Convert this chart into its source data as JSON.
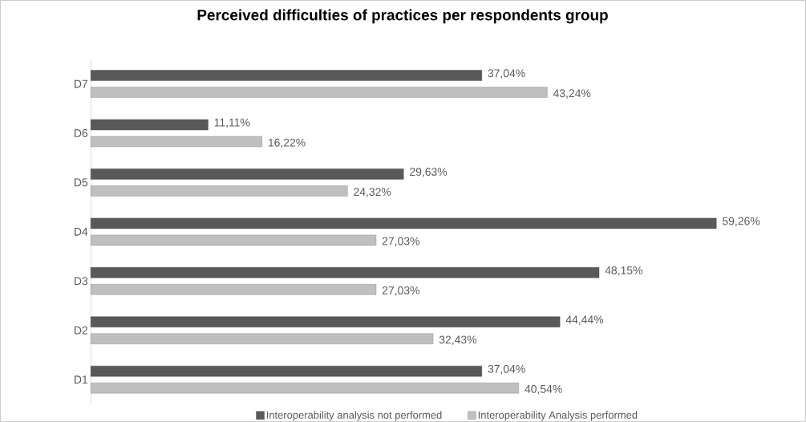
{
  "chart_data": {
    "type": "bar",
    "orientation": "horizontal",
    "title": "Perceived difficulties of practices per respondents group",
    "categories": [
      "D7",
      "D6",
      "D5",
      "D4",
      "D3",
      "D2",
      "D1"
    ],
    "series": [
      {
        "name": "Interoperability analysis not performed",
        "color": "#595959",
        "values": [
          37.04,
          11.11,
          29.63,
          59.26,
          48.15,
          44.44,
          37.04
        ],
        "value_labels": [
          "37,04%",
          "11,11%",
          "29,63%",
          "59,26%",
          "48,15%",
          "44,44%",
          "37,04%"
        ]
      },
      {
        "name": "Interoperability Analysis performed",
        "color": "#bfbfbf",
        "values": [
          43.24,
          16.22,
          24.32,
          27.03,
          27.03,
          32.43,
          40.54
        ],
        "value_labels": [
          "43,24%",
          "16,22%",
          "24,32%",
          "27,03%",
          "27,03%",
          "32,43%",
          "40,54%"
        ]
      }
    ],
    "legend": "bottom"
  }
}
